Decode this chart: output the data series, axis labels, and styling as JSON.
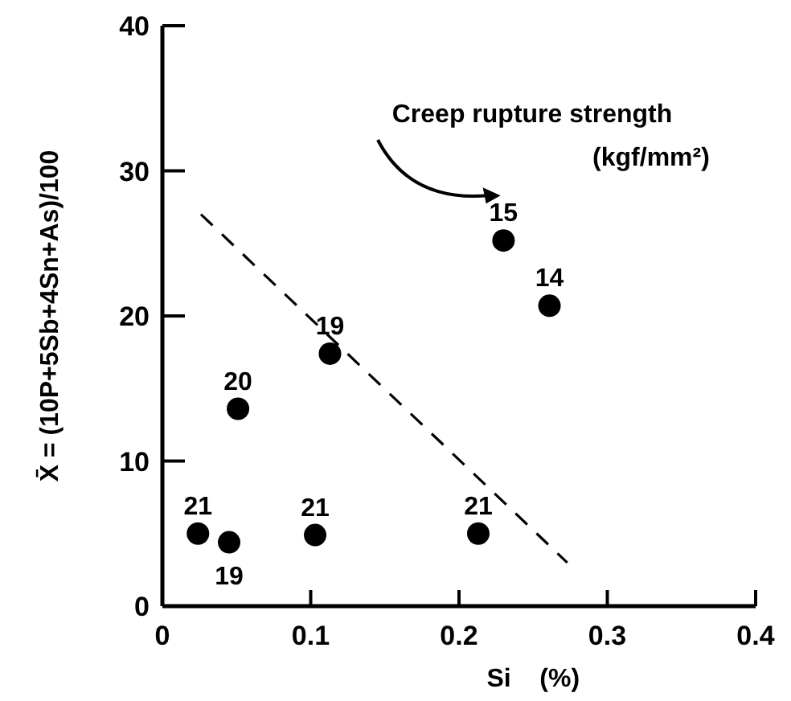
{
  "chart_data": {
    "type": "scatter",
    "xlabel": "Si    (%)",
    "ylabel": "X̄ = (10P+5Sb+4Sn+As)/100",
    "xlim": [
      0,
      0.4
    ],
    "xticks": [
      0,
      0.1,
      0.2,
      0.3,
      0.4
    ],
    "ylim": [
      0,
      40
    ],
    "yticks": [
      0,
      10,
      20,
      30,
      40
    ],
    "grid": false,
    "marker": "circle",
    "annotations": [
      "Creep rupture strength",
      "(kgf/mm²)",
      {
        "text": "21",
        "x": 0.024,
        "y": 5
      },
      {
        "text": "19",
        "x": 0.045,
        "y": 4.4
      },
      {
        "text": "20",
        "x": 0.051,
        "y": 13.6
      },
      {
        "text": "21",
        "x": 0.103,
        "y": 4.9
      },
      {
        "text": "19",
        "x": 0.113,
        "y": 17.4
      },
      {
        "text": "21",
        "x": 0.213,
        "y": 5
      },
      {
        "text": "15",
        "x": 0.23,
        "y": 25.2
      },
      {
        "text": "14",
        "x": 0.261,
        "y": 20.7
      }
    ],
    "series": [
      {
        "color": "#000000",
        "x": [
          0.024,
          0.045,
          0.051,
          0.103,
          0.113,
          0.213,
          0.23,
          0.261
        ],
        "values": [
          5,
          4.4,
          13.6,
          4.9,
          17.4,
          5,
          25.2,
          20.7
        ]
      },
      {
        "type": "line",
        "color": "#000000",
        "line_style": "dashed",
        "marker": "none",
        "x": [
          0.026,
          0.273
        ],
        "values": [
          27,
          3
        ]
      }
    ]
  }
}
